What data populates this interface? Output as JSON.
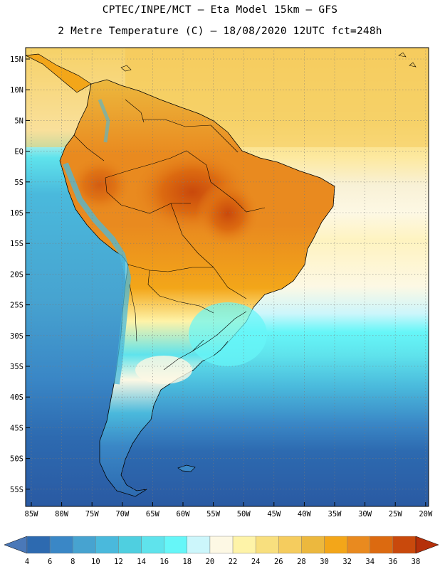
{
  "header": {
    "line1": "CPTEC/INPE/MCT –  Eta Model 15km – GFS",
    "line2": "2 Metre Temperature (C) – 18/08/2020 12UTC fct=248h"
  },
  "map": {
    "lat_labels": [
      "15N",
      "10N",
      "5N",
      "EQ",
      "5S",
      "10S",
      "15S",
      "20S",
      "25S",
      "30S",
      "35S",
      "40S",
      "45S",
      "50S",
      "55S"
    ],
    "lon_labels": [
      "85W",
      "80W",
      "75W",
      "70W",
      "65W",
      "60W",
      "55W",
      "50W",
      "45W",
      "40W",
      "35W",
      "30W",
      "25W",
      "20W"
    ]
  },
  "legend": {
    "values": [
      "4",
      "6",
      "8",
      "10",
      "12",
      "14",
      "16",
      "18",
      "20",
      "22",
      "24",
      "26",
      "28",
      "30",
      "32",
      "34",
      "36",
      "38"
    ],
    "colors": [
      "#4a78b8",
      "#2d6ab0",
      "#3a87c6",
      "#47a3d0",
      "#4ab9dc",
      "#4fcfe0",
      "#5fe3ec",
      "#66f6f8",
      "#ccf6fb",
      "#fdf8e4",
      "#fef3a8",
      "#f8df7e",
      "#f5cc5e",
      "#ecb83e",
      "#f3a619",
      "#e98a1f",
      "#dc6a10",
      "#c9490c",
      "#b5300a"
    ]
  },
  "colors": {
    "ocean_cold": "#2d5fa6",
    "ocean_mid": "#4ab9dc",
    "ocean_warm": "#f5d264",
    "land_hot": "#dc6a10"
  }
}
